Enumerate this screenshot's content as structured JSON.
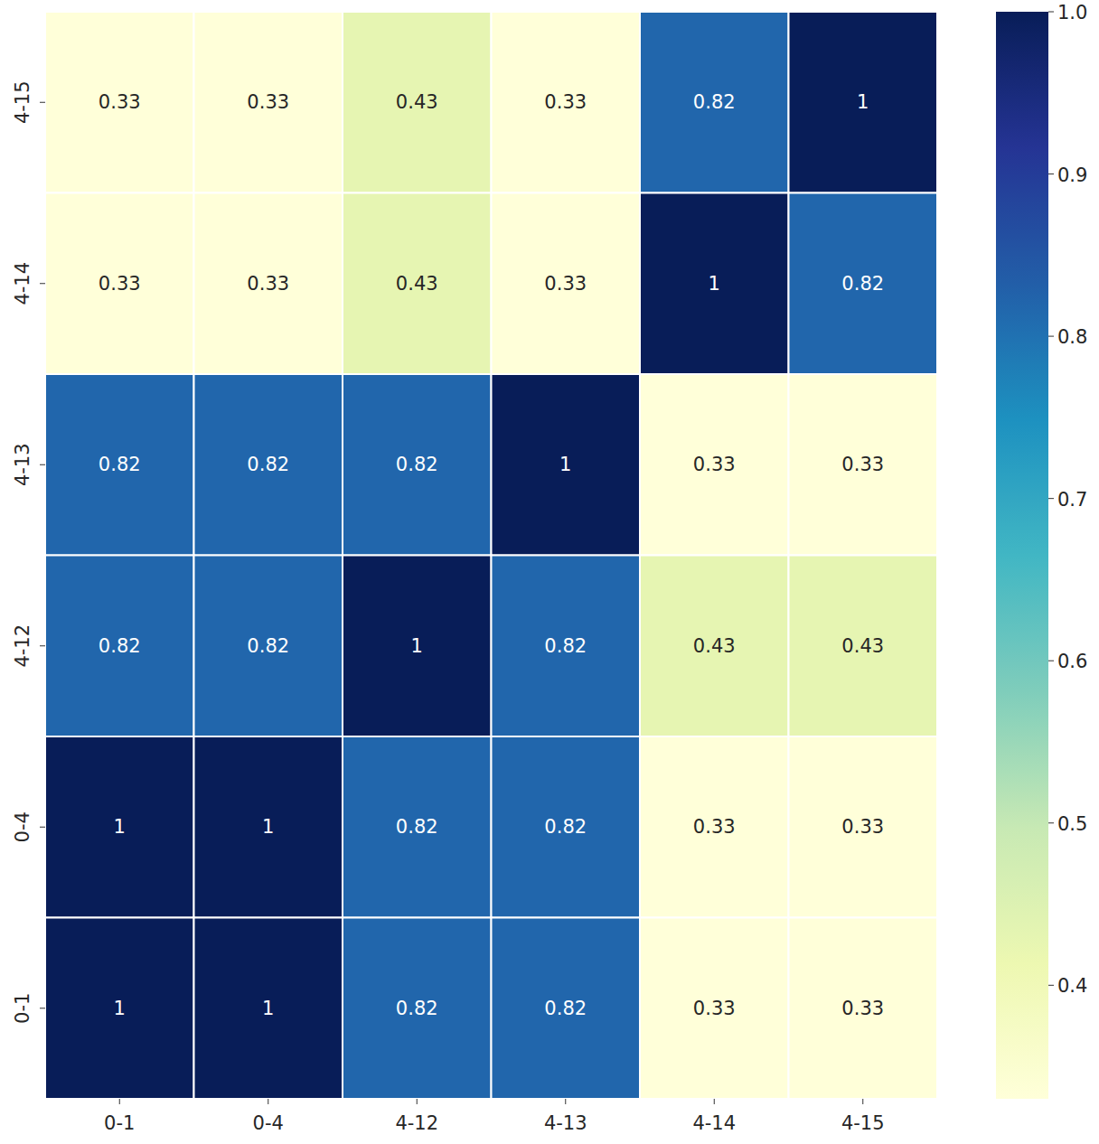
{
  "chart_data": {
    "type": "heatmap",
    "x_categories": [
      "0-1",
      "0-4",
      "4-12",
      "4-13",
      "4-14",
      "4-15"
    ],
    "y_categories": [
      "4-15",
      "4-14",
      "4-13",
      "4-12",
      "0-4",
      "0-1"
    ],
    "cells": [
      [
        0.33,
        0.33,
        0.43,
        0.33,
        0.82,
        1
      ],
      [
        0.33,
        0.33,
        0.43,
        0.33,
        1,
        0.82
      ],
      [
        0.82,
        0.82,
        0.82,
        1,
        0.33,
        0.33
      ],
      [
        0.82,
        0.82,
        1,
        0.82,
        0.43,
        0.43
      ],
      [
        1,
        1,
        0.82,
        0.82,
        0.33,
        0.33
      ],
      [
        1,
        1,
        0.82,
        0.82,
        0.33,
        0.33
      ]
    ],
    "data_labels": true,
    "colorbar": {
      "range": [
        0.33,
        1
      ],
      "ticks": [
        0.4,
        0.5,
        0.6,
        0.7,
        0.8,
        0.9,
        {
          "value": 1,
          "label": "1.0"
        }
      ]
    }
  }
}
